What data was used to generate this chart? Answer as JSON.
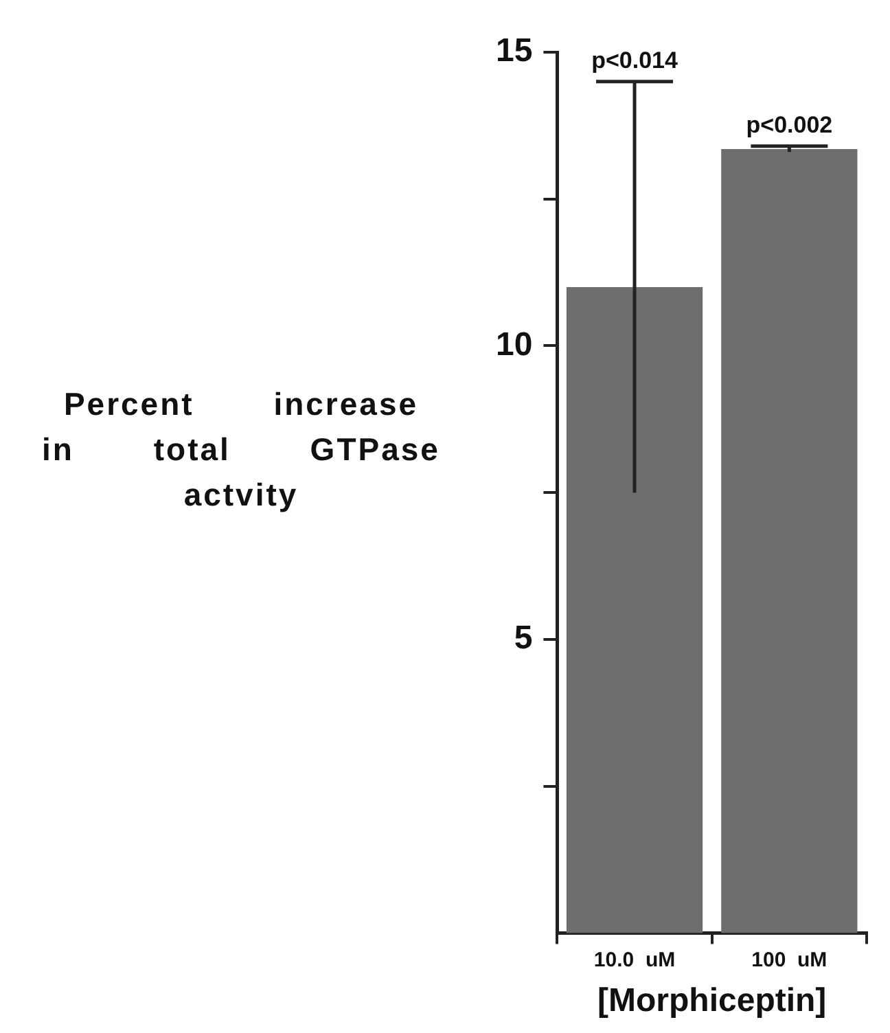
{
  "chart_data": {
    "type": "bar",
    "ylabel": "Percent increase in total GTPase actvity",
    "xlabel": "[Morphiceptin]",
    "categories": [
      "10.0  uM",
      "100  uM"
    ],
    "values": [
      11.0,
      13.35
    ],
    "errors": [
      3.5,
      0.05
    ],
    "color": "#6e6e6e",
    "ylim": [
      0,
      15
    ],
    "yticks": [
      {
        "value": 2.5,
        "label": null
      },
      5,
      {
        "value": 7.5,
        "label": null
      },
      10,
      {
        "value": 12.5,
        "label": null
      },
      15
    ],
    "annotations": [
      "p<0.014",
      "p<0.002"
    ],
    "grid": false,
    "legend": false
  }
}
